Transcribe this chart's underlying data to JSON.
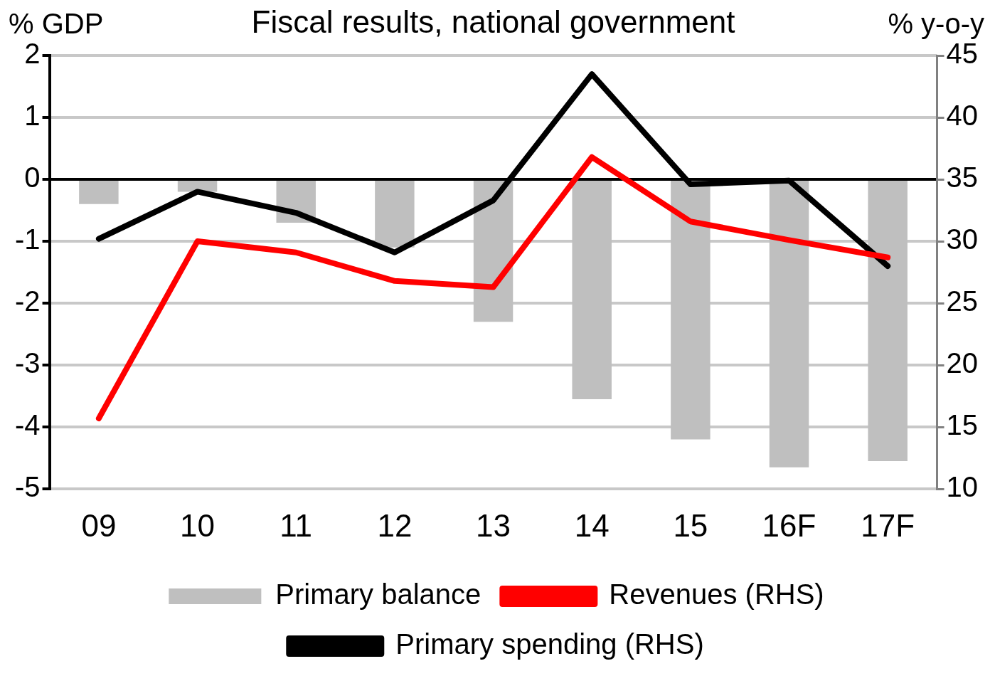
{
  "chart_data": {
    "type": "bar",
    "title": "Fiscal results, national government",
    "ylabel": "% GDP",
    "y2label": "% y-o-y",
    "categories": [
      "09",
      "10",
      "11",
      "12",
      "13",
      "14",
      "15",
      "16F",
      "17F"
    ],
    "series": [
      {
        "name": "Primary balance",
        "color": "#bfbfbf",
        "values": [
          -0.4,
          -0.2,
          -0.7,
          -1.1,
          -2.3,
          -3.55,
          -4.2,
          -4.65,
          -4.55
        ]
      },
      {
        "name": "Revenues (RHS)",
        "type": "line",
        "axis": "y2",
        "color": "#ff0000",
        "values": [
          15.7,
          30.0,
          29.1,
          26.8,
          26.3,
          36.8,
          31.6,
          30.1,
          28.7
        ]
      },
      {
        "name": "Primary spending (RHS)",
        "type": "line",
        "axis": "y2",
        "color": "#000000",
        "values": [
          30.2,
          34.0,
          32.3,
          29.1,
          33.3,
          43.5,
          34.6,
          34.9,
          28.0
        ]
      }
    ],
    "ylim": [
      -5,
      2
    ],
    "yticks": [
      -5,
      -4,
      -3,
      -2,
      -1,
      0,
      1,
      2
    ],
    "y2lim": [
      10,
      45
    ],
    "y2ticks": [
      10,
      15,
      20,
      25,
      30,
      35,
      40,
      45
    ],
    "grid": "y",
    "legend": "bottom",
    "marker": "none",
    "line_style": "solid"
  }
}
